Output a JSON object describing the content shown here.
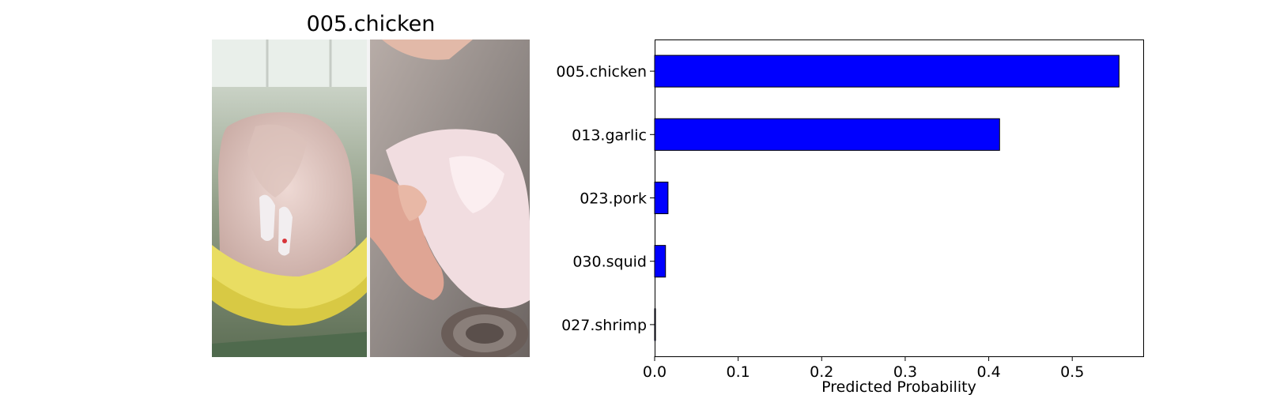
{
  "image_panel": {
    "title": "005.chicken"
  },
  "colors": {
    "bar_fill": "#0000ff",
    "bar_edge": "#000000"
  },
  "chart_data": {
    "type": "bar",
    "orientation": "horizontal",
    "categories": [
      "005.chicken",
      "013.garlic",
      "023.pork",
      "030.squid",
      "027.shrimp"
    ],
    "values": [
      0.556,
      0.413,
      0.016,
      0.013,
      0.001
    ],
    "xlabel": "Predicted Probability",
    "ylabel": "",
    "xlim": [
      0,
      0.585
    ],
    "xticks": [
      0.0,
      0.1,
      0.2,
      0.3,
      0.4,
      0.5
    ],
    "xtick_labels": [
      "0.0",
      "0.1",
      "0.2",
      "0.3",
      "0.4",
      "0.5"
    ],
    "grid": false
  }
}
